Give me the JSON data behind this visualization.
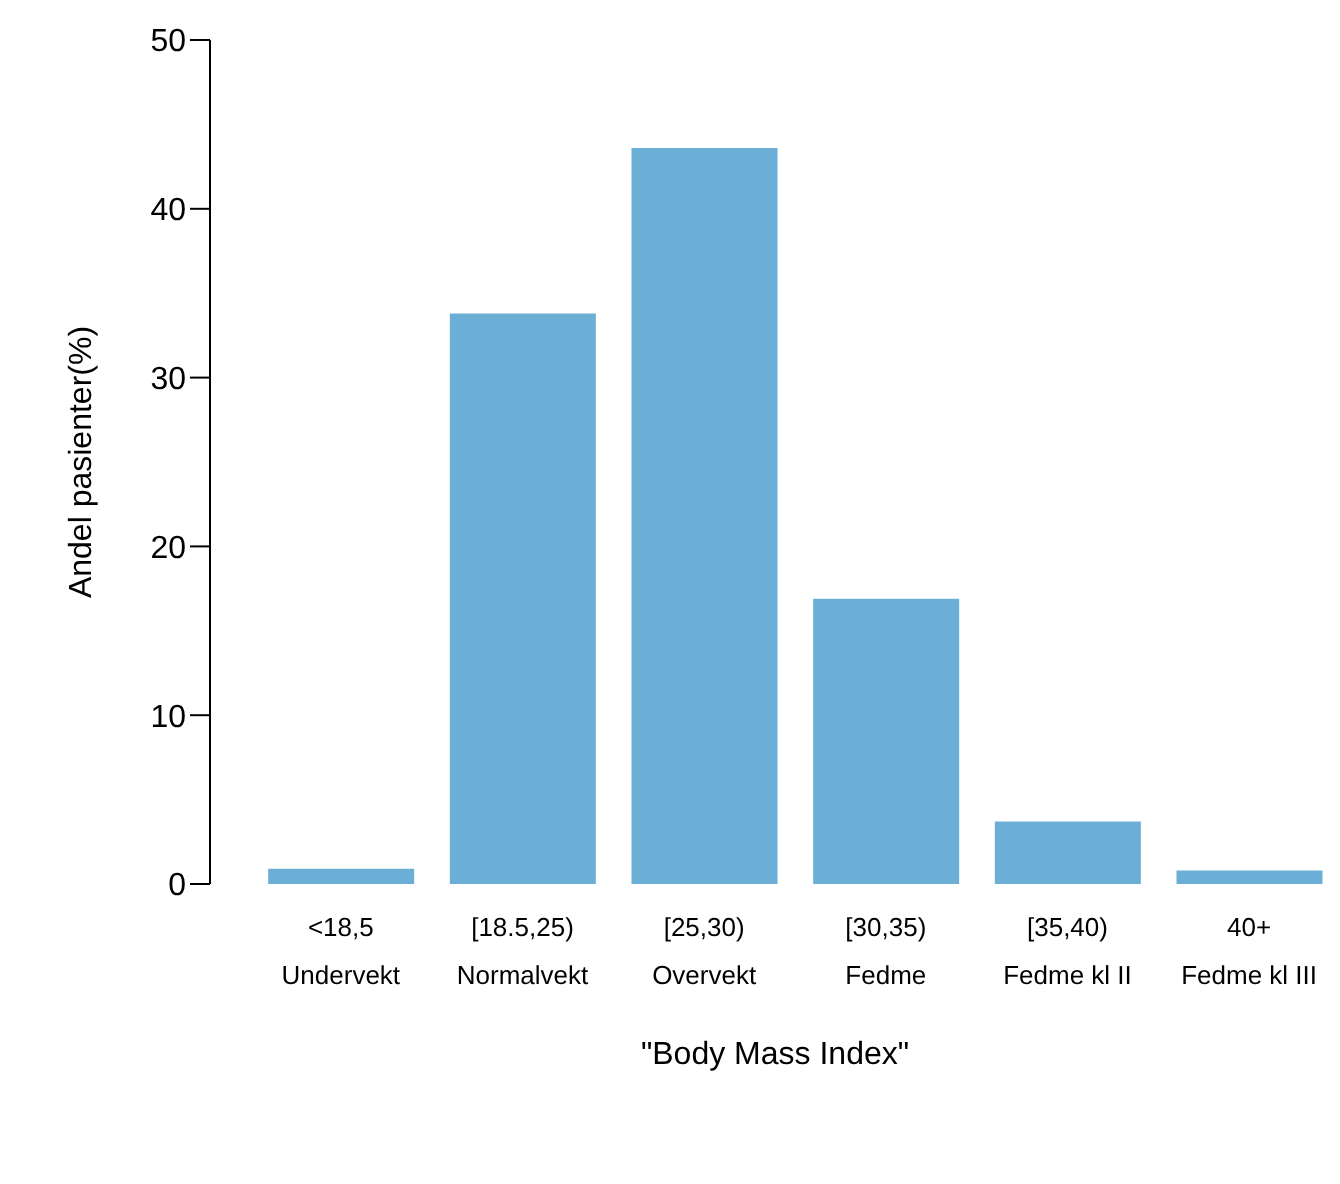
{
  "chart_data": {
    "type": "bar",
    "xlabel": "\"Body Mass Index\"",
    "ylabel": "Andel pasienter(%)",
    "categories": [
      "<18,5\nUndervekt",
      "[18.5,25)\nNormalvekt",
      "[25,30)\nOvervekt",
      "[30,35)\nFedme",
      "[35,40)\nFedme kl II",
      "40+\nFedme kl III"
    ],
    "values": [
      0.9,
      33.8,
      43.6,
      16.9,
      3.7,
      0.8
    ],
    "color": "#6baed6",
    "ylim": [
      0,
      50
    ],
    "yticks": [
      0,
      10,
      20,
      30,
      40,
      50
    ],
    "grid": false,
    "legend": false
  }
}
